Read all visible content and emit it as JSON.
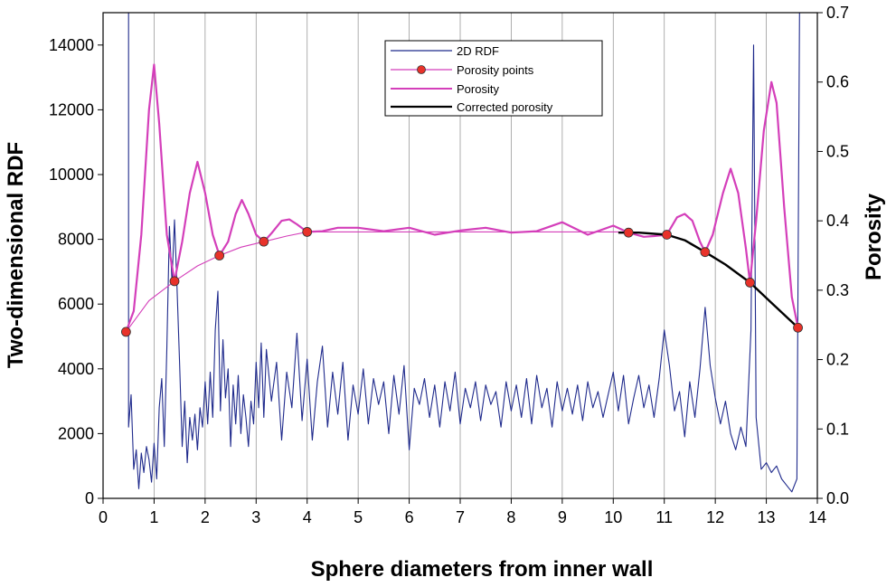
{
  "chart_data": {
    "type": "line",
    "xlabel": "Sphere diameters from inner wall",
    "ylabel": "Two-dimensional RDF",
    "y2label": "Porosity",
    "xlim": [
      0,
      14
    ],
    "ylim": [
      0,
      15000
    ],
    "y2lim": [
      0,
      0.7
    ],
    "x_ticks": [
      "0",
      "1",
      "2",
      "3",
      "4",
      "5",
      "6",
      "7",
      "8",
      "9",
      "10",
      "11",
      "12",
      "13",
      "14"
    ],
    "y_ticks": [
      "0",
      "2000",
      "4000",
      "6000",
      "8000",
      "10000",
      "12000",
      "14000"
    ],
    "y2_ticks": [
      "0.0",
      "0.1",
      "0.2",
      "0.3",
      "0.4",
      "0.5",
      "0.6",
      "0.7"
    ],
    "grid": "vertical",
    "legend_position": "top-center",
    "series": [
      {
        "name": "2D RDF",
        "axis": "left",
        "color": "#1f2a8c",
        "description_points": [
          [
            0.5,
            15000
          ],
          [
            0.5,
            2200
          ],
          [
            0.55,
            3200
          ],
          [
            0.6,
            900
          ],
          [
            0.65,
            1500
          ],
          [
            0.7,
            300
          ],
          [
            0.75,
            1400
          ],
          [
            0.8,
            800
          ],
          [
            0.85,
            1600
          ],
          [
            0.9,
            1200
          ],
          [
            0.95,
            500
          ],
          [
            1.0,
            1700
          ],
          [
            1.05,
            600
          ],
          [
            1.1,
            2800
          ],
          [
            1.15,
            3700
          ],
          [
            1.2,
            1600
          ],
          [
            1.25,
            4600
          ],
          [
            1.3,
            8400
          ],
          [
            1.35,
            6700
          ],
          [
            1.4,
            8600
          ],
          [
            1.45,
            6500
          ],
          [
            1.5,
            4200
          ],
          [
            1.55,
            1600
          ],
          [
            1.6,
            3000
          ],
          [
            1.65,
            1100
          ],
          [
            1.7,
            2500
          ],
          [
            1.75,
            1800
          ],
          [
            1.8,
            2600
          ],
          [
            1.85,
            1500
          ],
          [
            1.9,
            2800
          ],
          [
            1.95,
            2200
          ],
          [
            2.0,
            3600
          ],
          [
            2.05,
            2300
          ],
          [
            2.1,
            3900
          ],
          [
            2.15,
            2500
          ],
          [
            2.2,
            5200
          ],
          [
            2.25,
            6400
          ],
          [
            2.3,
            2700
          ],
          [
            2.35,
            4900
          ],
          [
            2.4,
            3100
          ],
          [
            2.45,
            4000
          ],
          [
            2.5,
            1600
          ],
          [
            2.55,
            3500
          ],
          [
            2.6,
            2300
          ],
          [
            2.65,
            3800
          ],
          [
            2.7,
            2000
          ],
          [
            2.75,
            3200
          ],
          [
            2.8,
            2500
          ],
          [
            2.85,
            1600
          ],
          [
            2.9,
            3000
          ],
          [
            2.95,
            2300
          ],
          [
            3.0,
            4200
          ],
          [
            3.05,
            2800
          ],
          [
            3.1,
            4800
          ],
          [
            3.15,
            2500
          ],
          [
            3.2,
            4600
          ],
          [
            3.3,
            3000
          ],
          [
            3.4,
            4200
          ],
          [
            3.5,
            1800
          ],
          [
            3.6,
            3900
          ],
          [
            3.7,
            2800
          ],
          [
            3.8,
            5100
          ],
          [
            3.9,
            2400
          ],
          [
            4.0,
            4300
          ],
          [
            4.1,
            1800
          ],
          [
            4.2,
            3600
          ],
          [
            4.3,
            4700
          ],
          [
            4.4,
            2200
          ],
          [
            4.5,
            3900
          ],
          [
            4.6,
            2600
          ],
          [
            4.7,
            4200
          ],
          [
            4.8,
            1800
          ],
          [
            4.9,
            3500
          ],
          [
            5.0,
            2600
          ],
          [
            5.1,
            4000
          ],
          [
            5.2,
            2300
          ],
          [
            5.3,
            3700
          ],
          [
            5.4,
            2900
          ],
          [
            5.5,
            3600
          ],
          [
            5.6,
            2000
          ],
          [
            5.7,
            3800
          ],
          [
            5.8,
            2600
          ],
          [
            5.9,
            4100
          ],
          [
            6.0,
            1500
          ],
          [
            6.1,
            3400
          ],
          [
            6.2,
            2900
          ],
          [
            6.3,
            3700
          ],
          [
            6.4,
            2500
          ],
          [
            6.5,
            3500
          ],
          [
            6.6,
            2200
          ],
          [
            6.7,
            3600
          ],
          [
            6.8,
            2700
          ],
          [
            6.9,
            3900
          ],
          [
            7.0,
            2300
          ],
          [
            7.1,
            3400
          ],
          [
            7.2,
            2800
          ],
          [
            7.3,
            3600
          ],
          [
            7.4,
            2400
          ],
          [
            7.5,
            3500
          ],
          [
            7.6,
            2900
          ],
          [
            7.7,
            3300
          ],
          [
            7.8,
            2200
          ],
          [
            7.9,
            3600
          ],
          [
            8.0,
            2700
          ],
          [
            8.1,
            3500
          ],
          [
            8.2,
            2500
          ],
          [
            8.3,
            3700
          ],
          [
            8.4,
            2300
          ],
          [
            8.5,
            3800
          ],
          [
            8.6,
            2800
          ],
          [
            8.7,
            3400
          ],
          [
            8.8,
            2200
          ],
          [
            8.9,
            3600
          ],
          [
            9.0,
            2700
          ],
          [
            9.1,
            3400
          ],
          [
            9.2,
            2600
          ],
          [
            9.3,
            3500
          ],
          [
            9.4,
            2400
          ],
          [
            9.5,
            3600
          ],
          [
            9.6,
            2800
          ],
          [
            9.7,
            3300
          ],
          [
            9.8,
            2500
          ],
          [
            9.9,
            3200
          ],
          [
            10.0,
            3900
          ],
          [
            10.1,
            2700
          ],
          [
            10.2,
            3800
          ],
          [
            10.3,
            2300
          ],
          [
            10.4,
            3100
          ],
          [
            10.5,
            3800
          ],
          [
            10.6,
            2800
          ],
          [
            10.7,
            3500
          ],
          [
            10.8,
            2500
          ],
          [
            10.9,
            3700
          ],
          [
            11.0,
            5200
          ],
          [
            11.1,
            4100
          ],
          [
            11.2,
            2700
          ],
          [
            11.3,
            3300
          ],
          [
            11.4,
            1900
          ],
          [
            11.5,
            3600
          ],
          [
            11.6,
            2500
          ],
          [
            11.7,
            4000
          ],
          [
            11.8,
            5900
          ],
          [
            11.9,
            4100
          ],
          [
            12.0,
            3100
          ],
          [
            12.1,
            2300
          ],
          [
            12.2,
            3000
          ],
          [
            12.3,
            2000
          ],
          [
            12.4,
            1500
          ],
          [
            12.5,
            2200
          ],
          [
            12.6,
            1600
          ],
          [
            12.7,
            5200
          ],
          [
            12.75,
            14000
          ],
          [
            12.8,
            2500
          ],
          [
            12.9,
            900
          ],
          [
            13.0,
            1100
          ],
          [
            13.1,
            800
          ],
          [
            13.2,
            1000
          ],
          [
            13.3,
            600
          ],
          [
            13.4,
            400
          ],
          [
            13.5,
            200
          ],
          [
            13.6,
            600
          ],
          [
            13.65,
            15000
          ]
        ]
      },
      {
        "name": "Porosity points",
        "axis": "right",
        "color": "#e8322a",
        "points": [
          [
            0.45,
            0.24
          ],
          [
            1.4,
            0.313
          ],
          [
            2.28,
            0.35
          ],
          [
            3.15,
            0.37
          ],
          [
            4.0,
            0.384
          ],
          [
            10.3,
            0.383
          ],
          [
            11.05,
            0.38
          ],
          [
            11.8,
            0.355
          ],
          [
            12.68,
            0.311
          ],
          [
            13.62,
            0.246
          ]
        ]
      },
      {
        "name": "Porosity",
        "axis": "right",
        "color": "#d43fba",
        "description_points": [
          [
            0.45,
            0.24
          ],
          [
            0.6,
            0.27
          ],
          [
            0.75,
            0.38
          ],
          [
            0.9,
            0.56
          ],
          [
            1.0,
            0.625
          ],
          [
            1.1,
            0.54
          ],
          [
            1.25,
            0.38
          ],
          [
            1.4,
            0.313
          ],
          [
            1.55,
            0.37
          ],
          [
            1.7,
            0.44
          ],
          [
            1.85,
            0.485
          ],
          [
            2.0,
            0.44
          ],
          [
            2.15,
            0.38
          ],
          [
            2.28,
            0.35
          ],
          [
            2.45,
            0.37
          ],
          [
            2.6,
            0.41
          ],
          [
            2.72,
            0.43
          ],
          [
            2.85,
            0.41
          ],
          [
            3.0,
            0.38
          ],
          [
            3.15,
            0.37
          ],
          [
            3.3,
            0.382
          ],
          [
            3.5,
            0.4
          ],
          [
            3.65,
            0.402
          ],
          [
            3.8,
            0.395
          ],
          [
            4.0,
            0.384
          ],
          [
            4.3,
            0.385
          ],
          [
            4.6,
            0.39
          ],
          [
            5.0,
            0.39
          ],
          [
            5.5,
            0.385
          ],
          [
            6.0,
            0.39
          ],
          [
            6.5,
            0.38
          ],
          [
            7.0,
            0.386
          ],
          [
            7.5,
            0.39
          ],
          [
            8.0,
            0.383
          ],
          [
            8.5,
            0.385
          ],
          [
            9.0,
            0.398
          ],
          [
            9.5,
            0.38
          ],
          [
            10.0,
            0.393
          ],
          [
            10.3,
            0.383
          ],
          [
            10.6,
            0.377
          ],
          [
            10.8,
            0.378
          ],
          [
            11.05,
            0.38
          ],
          [
            11.25,
            0.405
          ],
          [
            11.4,
            0.41
          ],
          [
            11.55,
            0.4
          ],
          [
            11.7,
            0.37
          ],
          [
            11.8,
            0.355
          ],
          [
            11.95,
            0.38
          ],
          [
            12.15,
            0.44
          ],
          [
            12.3,
            0.475
          ],
          [
            12.45,
            0.44
          ],
          [
            12.6,
            0.36
          ],
          [
            12.68,
            0.311
          ],
          [
            12.8,
            0.4
          ],
          [
            12.95,
            0.53
          ],
          [
            13.1,
            0.6
          ],
          [
            13.2,
            0.57
          ],
          [
            13.35,
            0.42
          ],
          [
            13.5,
            0.29
          ],
          [
            13.62,
            0.246
          ]
        ]
      },
      {
        "name": "Corrected porosity",
        "axis": "right",
        "color": "#000000",
        "description_points": [
          [
            10.1,
            0.383
          ],
          [
            10.5,
            0.383
          ],
          [
            11.05,
            0.38
          ],
          [
            11.4,
            0.372
          ],
          [
            11.8,
            0.355
          ],
          [
            12.2,
            0.337
          ],
          [
            12.68,
            0.311
          ],
          [
            13.1,
            0.282
          ],
          [
            13.62,
            0.246
          ]
        ]
      }
    ],
    "porosity_trend": {
      "color": "#d43fba",
      "points": [
        [
          0.45,
          0.24
        ],
        [
          0.9,
          0.285
        ],
        [
          1.4,
          0.313
        ],
        [
          1.85,
          0.335
        ],
        [
          2.28,
          0.35
        ],
        [
          2.7,
          0.362
        ],
        [
          3.15,
          0.37
        ],
        [
          3.6,
          0.378
        ],
        [
          4.0,
          0.384
        ],
        [
          10.3,
          0.384
        ]
      ]
    }
  }
}
